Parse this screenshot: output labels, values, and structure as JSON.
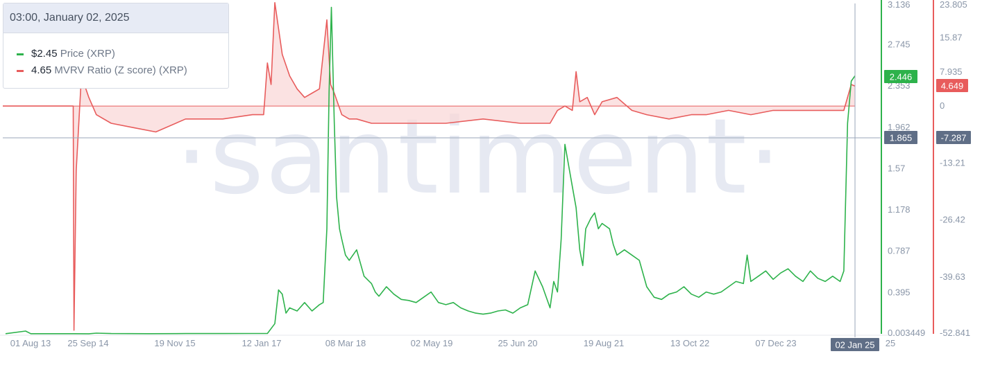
{
  "tooltip": {
    "date": "03:00, January 02, 2025",
    "items": [
      {
        "value": "$2.45",
        "label": "Price (XRP)",
        "color": "#2db24b"
      },
      {
        "value": "4.65",
        "label": "MVRV Ratio (Z score) (XRP)",
        "color": "#e85c5c"
      }
    ]
  },
  "watermark": "·santiment·",
  "chart_data": {
    "type": "line",
    "x_ticks": [
      "01 Aug 13",
      "25 Sep 14",
      "19 Nov 15",
      "12 Jan 17",
      "08 Mar 18",
      "02 May 19",
      "25 Jun 20",
      "19 Aug 21",
      "13 Oct 22",
      "07 Dec 23",
      "25"
    ],
    "cursor_x_label": "02 Jan 25",
    "left_axis": {
      "ticks": [
        "3.136",
        "2.745",
        "2.353",
        "1.962",
        "1.57",
        "1.178",
        "0.787",
        "0.395",
        "0.003449"
      ],
      "range": [
        0.003449,
        3.136
      ],
      "current_label": "2.446",
      "cursor_label": "1.865"
    },
    "right_axis": {
      "ticks": [
        "23.805",
        "15.87",
        "7.935",
        "0",
        "-13.21",
        "-26.42",
        "-39.63",
        "-52.841"
      ],
      "range": [
        -52.841,
        23.805
      ],
      "current_label": "4.649",
      "cursor_label": "-7.287"
    },
    "series": [
      {
        "name": "Price (XRP)",
        "axis": "left",
        "color": "#2db24b",
        "x": [
          2013.58,
          2013.85,
          2013.92,
          2014.0,
          2014.5,
          2014.7,
          2014.8,
          2015.0,
          2015.5,
          2016.0,
          2016.5,
          2016.9,
          2017.1,
          2017.2,
          2017.25,
          2017.3,
          2017.35,
          2017.4,
          2017.5,
          2017.6,
          2017.7,
          2017.8,
          2017.85,
          2017.9,
          2017.93,
          2017.96,
          2018.0,
          2018.03,
          2018.07,
          2018.1,
          2018.15,
          2018.2,
          2018.3,
          2018.4,
          2018.5,
          2018.55,
          2018.6,
          2018.7,
          2018.8,
          2018.9,
          2019.0,
          2019.1,
          2019.2,
          2019.3,
          2019.4,
          2019.5,
          2019.6,
          2019.7,
          2019.8,
          2019.9,
          2020.0,
          2020.1,
          2020.2,
          2020.3,
          2020.4,
          2020.5,
          2020.6,
          2020.7,
          2020.8,
          2020.9,
          2020.95,
          2021.0,
          2021.05,
          2021.1,
          2021.2,
          2021.25,
          2021.3,
          2021.34,
          2021.38,
          2021.45,
          2021.5,
          2021.55,
          2021.6,
          2021.7,
          2021.75,
          2021.8,
          2021.9,
          2022.0,
          2022.1,
          2022.2,
          2022.3,
          2022.4,
          2022.5,
          2022.6,
          2022.7,
          2022.8,
          2022.9,
          2023.0,
          2023.1,
          2023.2,
          2023.3,
          2023.4,
          2023.5,
          2023.55,
          2023.6,
          2023.7,
          2023.8,
          2023.9,
          2024.0,
          2024.1,
          2024.2,
          2024.3,
          2024.4,
          2024.5,
          2024.6,
          2024.7,
          2024.8,
          2024.85,
          2024.9,
          2024.95,
          2025.0
        ],
        "y": [
          0.005,
          0.03,
          0.005,
          0.005,
          0.005,
          0.004,
          0.01,
          0.006,
          0.005,
          0.006,
          0.006,
          0.007,
          0.007,
          0.1,
          0.42,
          0.38,
          0.2,
          0.25,
          0.22,
          0.3,
          0.22,
          0.28,
          0.3,
          1.0,
          2.3,
          3.1,
          2.0,
          1.3,
          1.0,
          0.9,
          0.75,
          0.7,
          0.8,
          0.55,
          0.48,
          0.4,
          0.36,
          0.45,
          0.38,
          0.33,
          0.32,
          0.3,
          0.35,
          0.4,
          0.3,
          0.28,
          0.3,
          0.25,
          0.22,
          0.2,
          0.19,
          0.2,
          0.22,
          0.23,
          0.2,
          0.25,
          0.28,
          0.6,
          0.45,
          0.25,
          0.5,
          0.4,
          0.9,
          1.8,
          1.4,
          1.2,
          0.8,
          0.65,
          1.0,
          1.1,
          1.15,
          1.0,
          1.05,
          1.0,
          0.85,
          0.75,
          0.8,
          0.75,
          0.7,
          0.45,
          0.35,
          0.33,
          0.38,
          0.4,
          0.45,
          0.38,
          0.35,
          0.4,
          0.38,
          0.4,
          0.45,
          0.5,
          0.48,
          0.75,
          0.5,
          0.55,
          0.6,
          0.52,
          0.58,
          0.62,
          0.55,
          0.5,
          0.6,
          0.53,
          0.5,
          0.55,
          0.5,
          0.6,
          2.0,
          2.4,
          2.45
        ]
      },
      {
        "name": "MVRV Ratio (Z score) (XRP)",
        "axis": "right",
        "color": "#e85c5c",
        "x": [
          2013.0,
          2014.49,
          2014.5,
          2014.53,
          2014.6,
          2014.7,
          2014.8,
          2015.0,
          2015.3,
          2015.6,
          2016.0,
          2016.5,
          2016.9,
          2017.05,
          2017.1,
          2017.15,
          2017.2,
          2017.3,
          2017.4,
          2017.5,
          2017.6,
          2017.7,
          2017.8,
          2017.9,
          2017.95,
          2018.0,
          2018.1,
          2018.2,
          2018.3,
          2018.5,
          2019.0,
          2019.5,
          2020.0,
          2020.5,
          2020.9,
          2021.0,
          2021.1,
          2021.2,
          2021.25,
          2021.3,
          2021.4,
          2021.5,
          2021.6,
          2021.8,
          2022.0,
          2022.2,
          2022.5,
          2022.8,
          2023.0,
          2023.3,
          2023.6,
          2023.9,
          2024.0,
          2024.3,
          2024.6,
          2024.85,
          2024.95,
          2025.0
        ],
        "y": [
          0,
          0,
          -52,
          -15,
          7,
          2,
          -2,
          -4,
          -5,
          -6,
          -3,
          -3,
          -2,
          -2,
          10,
          5,
          24,
          12,
          7,
          4,
          2,
          3,
          4,
          20,
          5,
          3,
          -2,
          -3,
          -3,
          -4,
          -4,
          -4,
          -3,
          -4,
          -4,
          -1,
          0,
          -1,
          8,
          1,
          2,
          -2,
          1,
          2,
          -1,
          -2,
          -3,
          -2,
          -2,
          -1,
          -2,
          -1,
          -1,
          -1,
          -1,
          -1,
          5,
          4.65
        ]
      }
    ],
    "cursor_date": 2025.0,
    "grid": false,
    "legend": "top-left"
  }
}
